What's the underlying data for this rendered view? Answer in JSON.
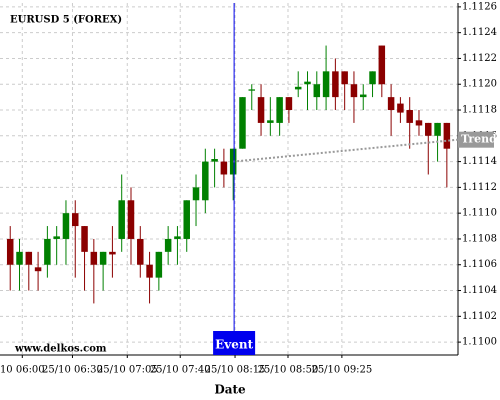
{
  "chart_data": {
    "type": "candlestick",
    "title": "EURUSD 5 (FOREX)",
    "watermark": "www.delkos.com",
    "x_label": "Date",
    "xlim": [
      -1.1,
      48.2
    ],
    "xticks": [
      {
        "value": 1.3,
        "label": "10 06:00"
      },
      {
        "value": 6.7,
        "label": "25/10 06:30"
      },
      {
        "value": 12.6,
        "label": "25/10 07:05"
      },
      {
        "value": 18.3,
        "label": "25/10 07:40"
      },
      {
        "value": 24.2,
        "label": "25/10 08:15"
      },
      {
        "value": 29.9,
        "label": "25/10 08:50"
      },
      {
        "value": 35.7,
        "label": "25/10 09:25"
      }
    ],
    "ylim": [
      1.1099,
      1.11263
    ],
    "yticks": [
      {
        "value": 1.11,
        "label": "1.1100"
      },
      1.1102,
      1.1104,
      1.1106,
      1.1108,
      {
        "value": 1.111,
        "label": "1.1110"
      },
      1.1112,
      1.1114,
      1.1116,
      1.1118,
      {
        "value": 1.112,
        "label": "1.1120"
      },
      1.1122,
      1.1124,
      1.1126
    ],
    "grid": true,
    "up_color": "#008000",
    "down_color": "#8b0000",
    "open": [
      1.1108,
      1.1106,
      1.1107,
      1.11058,
      1.1106,
      1.1108,
      1.1108,
      1.111,
      1.1109,
      1.1107,
      1.1106,
      1.1107,
      1.1108,
      1.1111,
      1.1108,
      1.1106,
      1.1105,
      1.1107,
      1.1108,
      1.1108,
      1.1111,
      1.1111,
      1.1114,
      1.1114,
      1.1113,
      1.1115,
      1.11195,
      1.1119,
      1.1117,
      1.1117,
      1.1119,
      1.11196,
      1.112,
      1.1119,
      1.1119,
      1.1121,
      1.1121,
      1.112,
      1.1119,
      1.112,
      1.1123,
      1.1119,
      1.11185,
      1.1118,
      1.11172,
      1.1117,
      1.1116,
      1.1117
    ],
    "high": [
      1.1109,
      1.1108,
      1.1107,
      1.1107,
      1.1109,
      1.1109,
      1.1111,
      1.1111,
      1.1109,
      1.1108,
      1.1107,
      1.1109,
      1.1113,
      1.1112,
      1.1109,
      1.1107,
      1.1107,
      1.1109,
      1.1109,
      1.1111,
      1.1113,
      1.1115,
      1.1115,
      1.1115,
      1.1115,
      1.1119,
      1.112,
      1.112,
      1.1119,
      1.1119,
      1.1119,
      1.1121,
      1.1121,
      1.1121,
      1.1123,
      1.1122,
      1.1121,
      1.1121,
      1.112,
      1.1121,
      1.1123,
      1.112,
      1.1119,
      1.1119,
      1.1118,
      1.1117,
      1.1117,
      1.1117
    ],
    "low": [
      1.1104,
      1.1104,
      1.1104,
      1.1104,
      1.1105,
      1.1106,
      1.1106,
      1.1105,
      1.1104,
      1.1103,
      1.1104,
      1.1105,
      1.1107,
      1.1106,
      1.1105,
      1.1103,
      1.1104,
      1.1106,
      1.1106,
      1.1107,
      1.1109,
      1.111,
      1.1112,
      1.1112,
      1.1111,
      1.1115,
      1.1118,
      1.1116,
      1.1116,
      1.1116,
      1.1117,
      1.1119,
      1.1118,
      1.1118,
      1.1118,
      1.1118,
      1.1118,
      1.1117,
      1.1118,
      1.1119,
      1.1119,
      1.1116,
      1.1117,
      1.1115,
      1.1116,
      1.1113,
      1.1114,
      1.1112
    ],
    "close": [
      1.1106,
      1.1107,
      1.1106,
      1.11055,
      1.1108,
      1.11082,
      1.111,
      1.1109,
      1.1107,
      1.1106,
      1.1107,
      1.11068,
      1.1111,
      1.1108,
      1.1106,
      1.1105,
      1.1107,
      1.1108,
      1.11082,
      1.1111,
      1.1112,
      1.1114,
      1.11142,
      1.1113,
      1.1115,
      1.1119,
      1.11196,
      1.1117,
      1.11172,
      1.1119,
      1.1118,
      1.11198,
      1.11202,
      1.112,
      1.1121,
      1.1119,
      1.112,
      1.1119,
      1.11192,
      1.1121,
      1.112,
      1.1118,
      1.11178,
      1.1117,
      1.11168,
      1.1116,
      1.1117,
      1.1115
    ],
    "trend": {
      "label": "Trend",
      "x": [
        24,
        48.2
      ],
      "values": [
        1.1114,
        1.11157
      ],
      "color": "#999999"
    },
    "event": {
      "label": "Event",
      "x": 24.1,
      "color": "#0000ee"
    }
  }
}
